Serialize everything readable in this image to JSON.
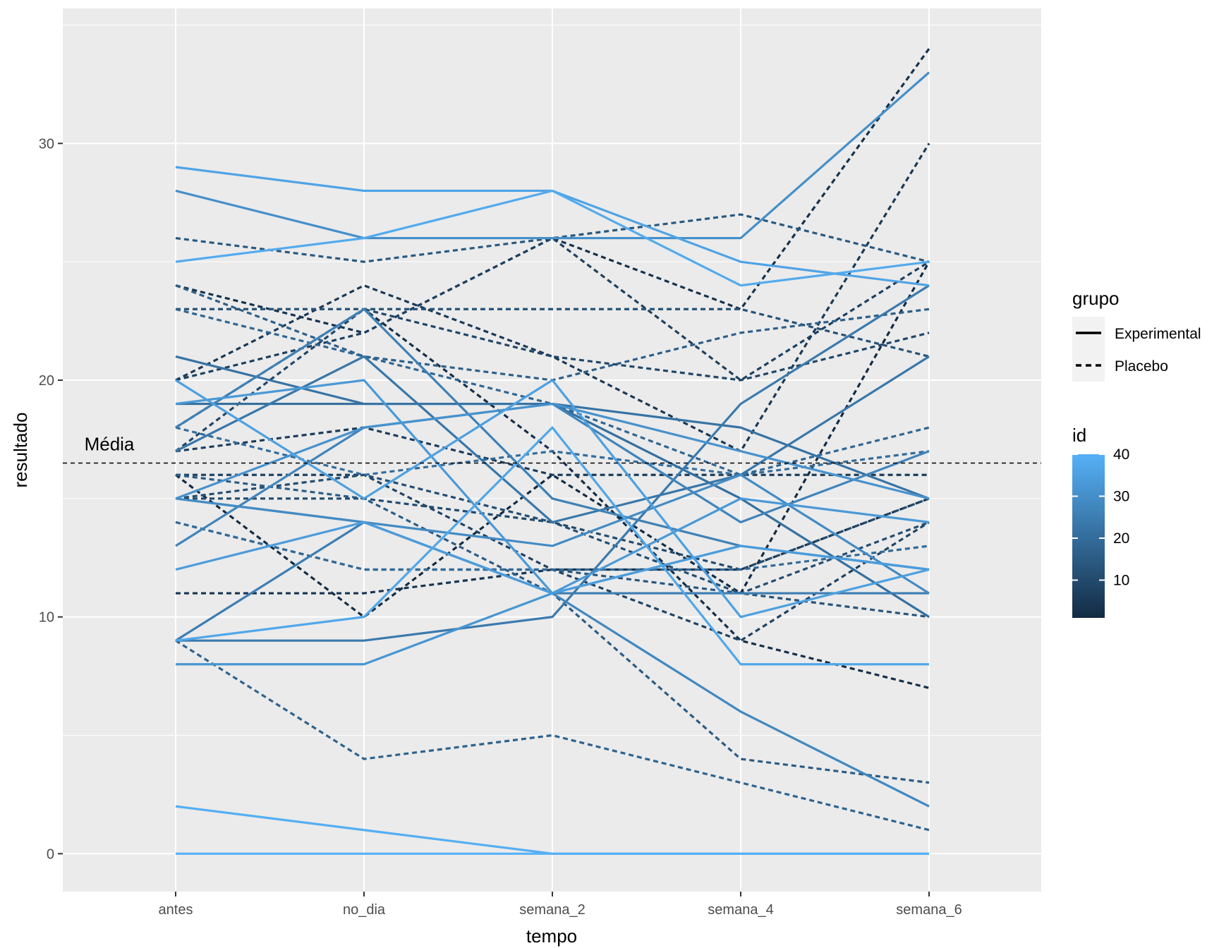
{
  "chart_data": {
    "type": "line",
    "xlabel": "tempo",
    "ylabel": "resultado",
    "categories": [
      "antes",
      "no_dia",
      "semana_2",
      "semana_4",
      "semana_6"
    ],
    "y_ticks": [
      0,
      10,
      20,
      30
    ],
    "ylim": [
      -1.6,
      35.7
    ],
    "grid": true,
    "background": "#ebebeb",
    "reference_line": {
      "y": 16.5,
      "style": "dashed",
      "color": "#000000"
    },
    "annotations": [
      {
        "text": "Média",
        "x": "antes",
        "y": 17.3
      }
    ],
    "legend_grupo": {
      "title": "grupo",
      "position": "right",
      "items": [
        {
          "label": "Experimental",
          "linetype": "solid"
        },
        {
          "label": "Placebo",
          "linetype": "dashed"
        }
      ]
    },
    "legend_id": {
      "title": "id",
      "min": 1,
      "max": 40,
      "ticks": [
        10,
        20,
        30,
        40
      ],
      "color_low": "#132b43",
      "color_high": "#56b1f7"
    },
    "series": [
      {
        "id": 40,
        "grupo": "Experimental",
        "values": [
          0,
          0,
          0,
          0,
          0
        ]
      },
      {
        "id": 39,
        "grupo": "Experimental",
        "values": [
          2,
          1,
          0,
          0,
          0
        ]
      },
      {
        "id": 36,
        "grupo": "Experimental",
        "values": [
          29,
          28,
          28,
          25,
          24
        ]
      },
      {
        "id": 30,
        "grupo": "Experimental",
        "values": [
          28,
          26,
          26,
          26,
          33
        ]
      },
      {
        "id": 38,
        "grupo": "Experimental",
        "values": [
          25,
          26,
          28,
          24,
          25
        ]
      },
      {
        "id": 35,
        "grupo": "Experimental",
        "values": [
          20,
          15,
          20,
          10,
          12
        ]
      },
      {
        "id": 22,
        "grupo": "Experimental",
        "values": [
          21,
          19,
          19,
          18,
          15
        ]
      },
      {
        "id": 33,
        "grupo": "Experimental",
        "values": [
          19,
          20,
          11,
          15,
          14
        ]
      },
      {
        "id": 26,
        "grupo": "Experimental",
        "values": [
          18,
          23,
          15,
          13,
          12
        ]
      },
      {
        "id": 31,
        "grupo": "Experimental",
        "values": [
          15,
          18,
          19,
          17,
          15
        ]
      },
      {
        "id": 27,
        "grupo": "Experimental",
        "values": [
          13,
          18,
          19,
          14,
          17
        ]
      },
      {
        "id": 29,
        "grupo": "Experimental",
        "values": [
          15,
          14,
          13,
          16,
          11
        ]
      },
      {
        "id": 34,
        "grupo": "Experimental",
        "values": [
          12,
          14,
          11,
          13,
          12
        ]
      },
      {
        "id": 25,
        "grupo": "Experimental",
        "values": [
          9,
          14,
          11,
          11,
          11
        ]
      },
      {
        "id": 37,
        "grupo": "Experimental",
        "values": [
          9,
          10,
          18,
          8,
          8
        ]
      },
      {
        "id": 24,
        "grupo": "Experimental",
        "values": [
          9,
          9,
          10,
          19,
          24
        ]
      },
      {
        "id": 32,
        "grupo": "Experimental",
        "values": [
          8,
          8,
          11,
          13,
          12
        ]
      },
      {
        "id": 23,
        "grupo": "Experimental",
        "values": [
          17,
          21,
          14,
          16,
          21
        ]
      },
      {
        "id": 28,
        "grupo": "Experimental",
        "values": [
          15,
          14,
          11,
          6,
          2
        ]
      },
      {
        "id": 21,
        "grupo": "Experimental",
        "values": [
          19,
          19,
          19,
          15,
          10
        ]
      },
      {
        "id": 3,
        "grupo": "Placebo",
        "values": [
          24,
          22,
          26,
          23,
          34
        ]
      },
      {
        "id": 5,
        "grupo": "Placebo",
        "values": [
          20,
          24,
          21,
          17,
          30
        ]
      },
      {
        "id": 14,
        "grupo": "Placebo",
        "values": [
          26,
          25,
          26,
          27,
          25
        ]
      },
      {
        "id": 7,
        "grupo": "Placebo",
        "values": [
          20,
          22,
          26,
          20,
          25
        ]
      },
      {
        "id": 12,
        "grupo": "Placebo",
        "values": [
          23,
          23,
          23,
          23,
          21
        ]
      },
      {
        "id": 16,
        "grupo": "Placebo",
        "values": [
          24,
          21,
          20,
          22,
          23
        ]
      },
      {
        "id": 9,
        "grupo": "Placebo",
        "values": [
          17,
          23,
          21,
          20,
          22
        ]
      },
      {
        "id": 18,
        "grupo": "Placebo",
        "values": [
          23,
          21,
          19,
          16,
          18
        ]
      },
      {
        "id": 2,
        "grupo": "Placebo",
        "values": [
          18,
          23,
          17,
          9,
          7
        ]
      },
      {
        "id": 1,
        "grupo": "Placebo",
        "values": [
          16,
          10,
          16,
          11,
          25
        ]
      },
      {
        "id": 6,
        "grupo": "Placebo",
        "values": [
          17,
          18,
          16,
          16,
          16
        ]
      },
      {
        "id": 10,
        "grupo": "Placebo",
        "values": [
          15,
          15,
          14,
          12,
          15
        ]
      },
      {
        "id": 8,
        "grupo": "Placebo",
        "values": [
          16,
          16,
          12,
          9,
          14
        ]
      },
      {
        "id": 11,
        "grupo": "Placebo",
        "values": [
          15,
          16,
          14,
          11,
          14
        ]
      },
      {
        "id": 4,
        "grupo": "Placebo",
        "values": [
          11,
          11,
          12,
          12,
          15
        ]
      },
      {
        "id": 13,
        "grupo": "Placebo",
        "values": [
          14,
          12,
          12,
          11,
          10
        ]
      },
      {
        "id": 15,
        "grupo": "Placebo",
        "values": [
          16,
          15,
          11,
          4,
          3
        ]
      },
      {
        "id": 17,
        "grupo": "Placebo",
        "values": [
          9,
          4,
          5,
          3,
          1
        ]
      },
      {
        "id": 19,
        "grupo": "Placebo",
        "values": [
          14,
          12,
          12,
          12,
          13
        ]
      },
      {
        "id": 20,
        "grupo": "Placebo",
        "values": [
          18,
          16,
          17,
          16,
          17
        ]
      }
    ]
  }
}
